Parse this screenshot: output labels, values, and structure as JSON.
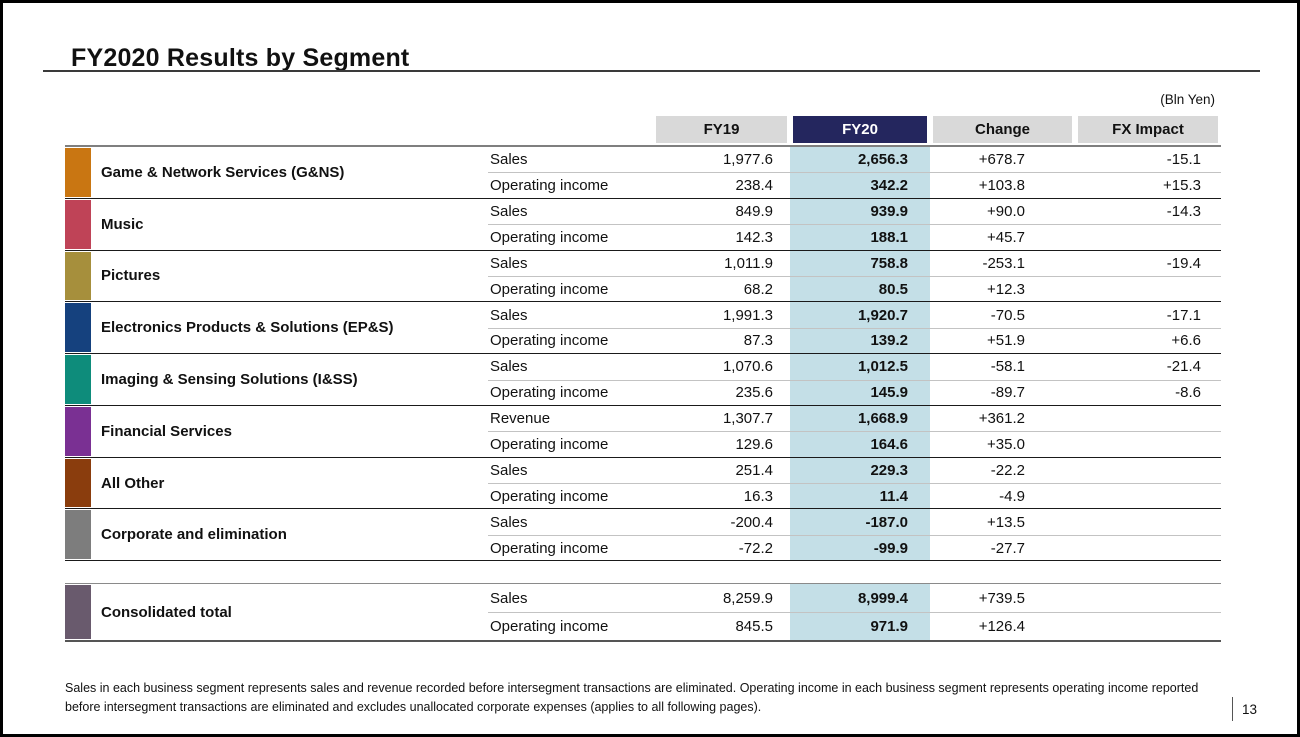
{
  "slide": {
    "title": "FY2020 Results by Segment",
    "unit_label": "(Bln Yen)",
    "page_number": "13",
    "footnote": "Sales in each business segment represents sales and revenue recorded before intersegment transactions are eliminated. Operating income in each business segment represents operating income reported before intersegment transactions are eliminated and excludes unallocated corporate expenses (applies to all following pages)."
  },
  "table": {
    "column_headers": [
      "FY19",
      "FY20",
      "Change",
      "FX Impact"
    ],
    "highlighted_column": "FY20",
    "colors": {
      "header_bg": "#d9d9d9",
      "header_highlight_bg": "#24265e",
      "column_highlight_bg": "#c4dfe7"
    },
    "segments": [
      {
        "name": "Game & Network Services (G&NS)",
        "color": "#c97612",
        "rows": [
          {
            "metric": "Sales",
            "fy19": "1,977.6",
            "fy20": "2,656.3",
            "change": "+678.7",
            "fx_impact": "-15.1"
          },
          {
            "metric": "Operating income",
            "fy19": "238.4",
            "fy20": "342.2",
            "change": "+103.8",
            "fx_impact": "+15.3"
          }
        ]
      },
      {
        "name": "Music",
        "color": "#bf4357",
        "rows": [
          {
            "metric": "Sales",
            "fy19": "849.9",
            "fy20": "939.9",
            "change": "+90.0",
            "fx_impact": "-14.3"
          },
          {
            "metric": "Operating income",
            "fy19": "142.3",
            "fy20": "188.1",
            "change": "+45.7",
            "fx_impact": ""
          }
        ]
      },
      {
        "name": "Pictures",
        "color": "#a68f3c",
        "rows": [
          {
            "metric": "Sales",
            "fy19": "1,011.9",
            "fy20": "758.8",
            "change": "-253.1",
            "fx_impact": "-19.4"
          },
          {
            "metric": "Operating income",
            "fy19": "68.2",
            "fy20": "80.5",
            "change": "+12.3",
            "fx_impact": ""
          }
        ]
      },
      {
        "name": "Electronics Products & Solutions (EP&S)",
        "color": "#15417e",
        "rows": [
          {
            "metric": "Sales",
            "fy19": "1,991.3",
            "fy20": "1,920.7",
            "change": "-70.5",
            "fx_impact": "-17.1"
          },
          {
            "metric": "Operating income",
            "fy19": "87.3",
            "fy20": "139.2",
            "change": "+51.9",
            "fx_impact": "+6.6"
          }
        ]
      },
      {
        "name": "Imaging & Sensing Solutions (I&SS)",
        "color": "#0e8c7b",
        "rows": [
          {
            "metric": "Sales",
            "fy19": "1,070.6",
            "fy20": "1,012.5",
            "change": "-58.1",
            "fx_impact": "-21.4"
          },
          {
            "metric": "Operating income",
            "fy19": "235.6",
            "fy20": "145.9",
            "change": "-89.7",
            "fx_impact": "-8.6"
          }
        ]
      },
      {
        "name": "Financial Services",
        "color": "#7a3093",
        "rows": [
          {
            "metric": "Revenue",
            "fy19": "1,307.7",
            "fy20": "1,668.9",
            "change": "+361.2",
            "fx_impact": ""
          },
          {
            "metric": "Operating income",
            "fy19": "129.6",
            "fy20": "164.6",
            "change": "+35.0",
            "fx_impact": ""
          }
        ]
      },
      {
        "name": "All Other",
        "color": "#8a3d0d",
        "rows": [
          {
            "metric": "Sales",
            "fy19": "251.4",
            "fy20": "229.3",
            "change": "-22.2",
            "fx_impact": ""
          },
          {
            "metric": "Operating income",
            "fy19": "16.3",
            "fy20": "11.4",
            "change": "-4.9",
            "fx_impact": ""
          }
        ]
      },
      {
        "name": "Corporate and elimination",
        "color": "#7d7d7d",
        "rows": [
          {
            "metric": "Sales",
            "fy19": "-200.4",
            "fy20": "-187.0",
            "change": "+13.5",
            "fx_impact": ""
          },
          {
            "metric": "Operating income",
            "fy19": "-72.2",
            "fy20": "-99.9",
            "change": "-27.7",
            "fx_impact": ""
          }
        ]
      }
    ],
    "total": {
      "name": "Consolidated total",
      "color": "#695a6d",
      "rows": [
        {
          "metric": "Sales",
          "fy19": "8,259.9",
          "fy20": "8,999.4",
          "change": "+739.5",
          "fx_impact": ""
        },
        {
          "metric": "Operating income",
          "fy19": "845.5",
          "fy20": "971.9",
          "change": "+126.4",
          "fx_impact": ""
        }
      ]
    }
  }
}
